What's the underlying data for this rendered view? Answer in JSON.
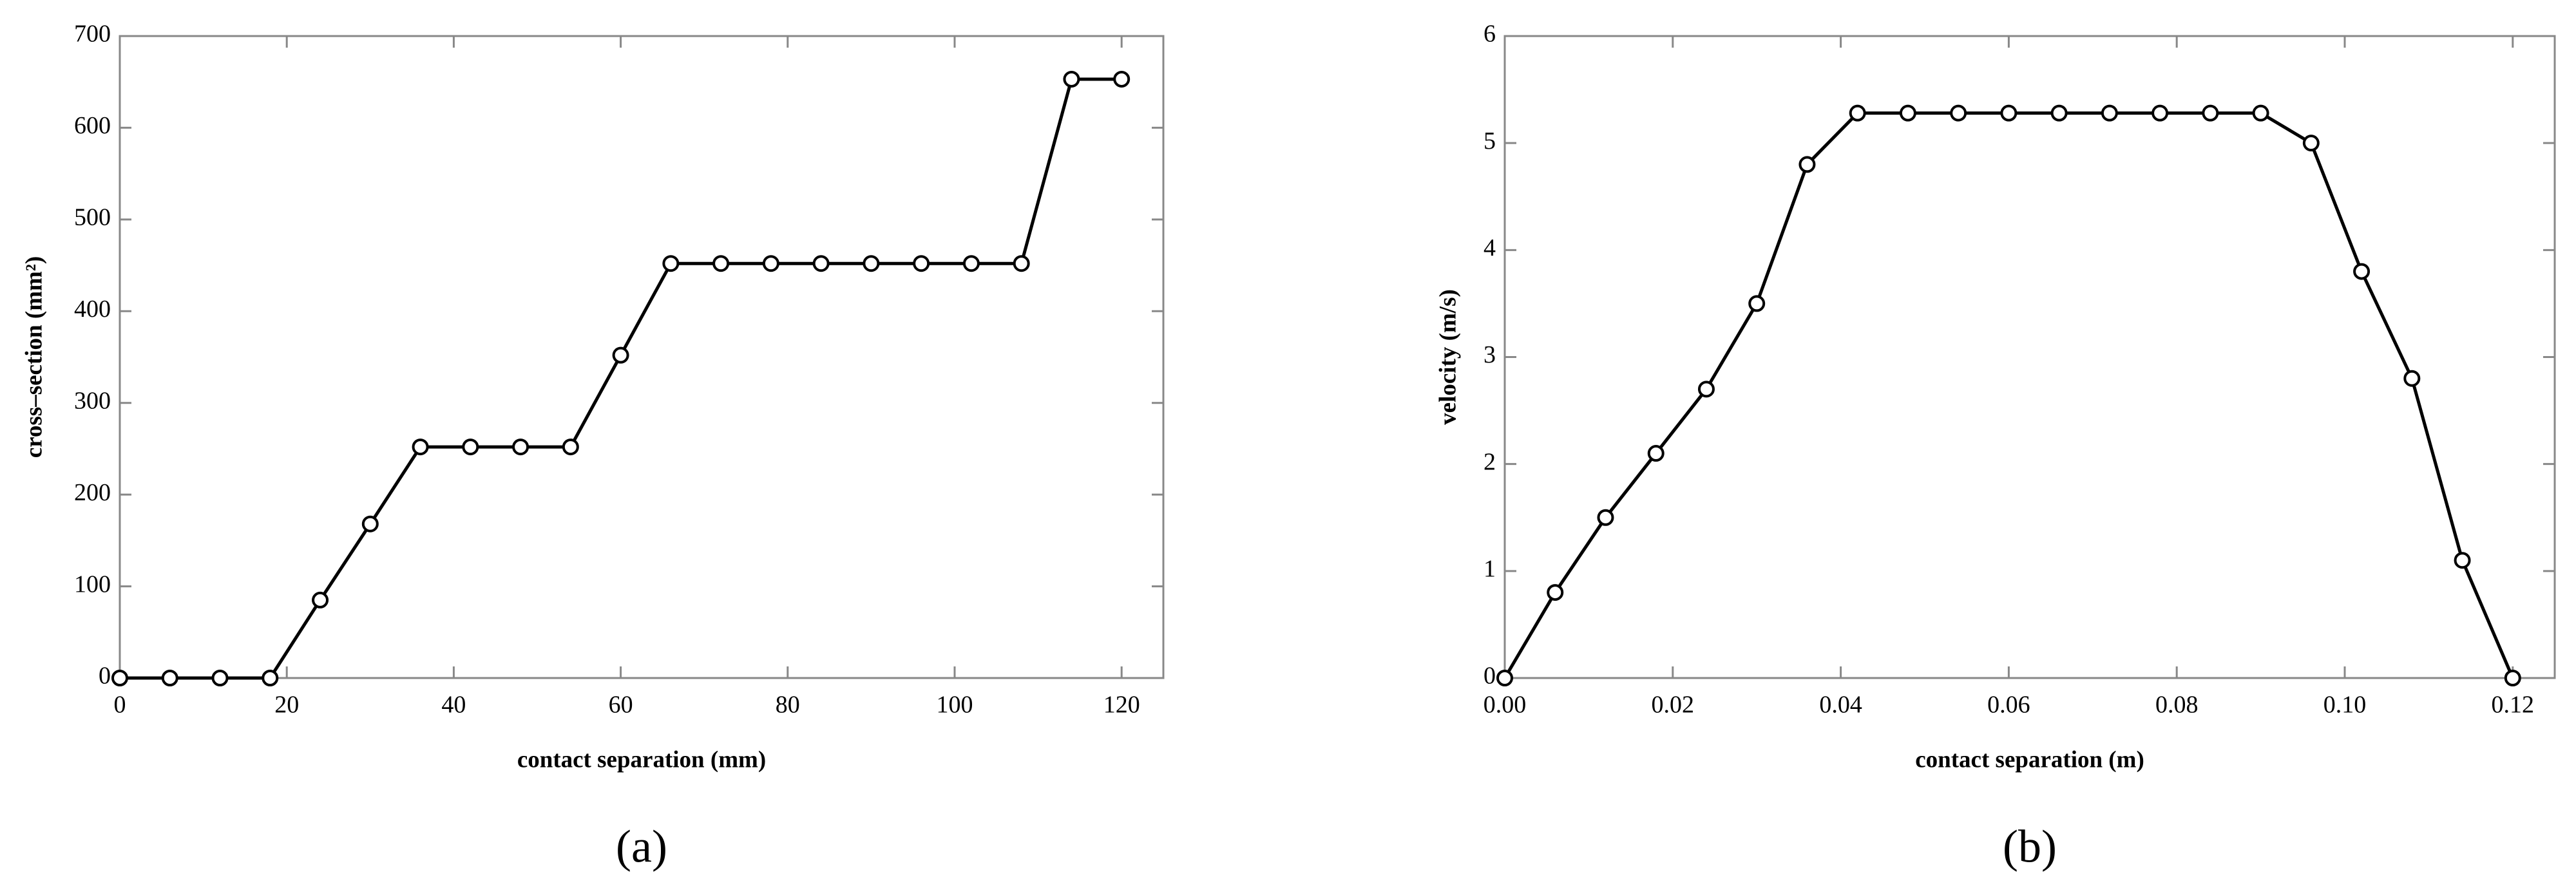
{
  "chart_data": [
    {
      "type": "line",
      "label": "(a)",
      "xlabel": "contact separation (mm)",
      "ylabel": "cross–section (mm²)",
      "x": [
        0,
        6,
        12,
        18,
        24,
        30,
        36,
        42,
        48,
        54,
        60,
        66,
        72,
        78,
        84,
        90,
        96,
        102,
        108,
        114,
        120
      ],
      "series": [
        {
          "color": "#000000",
          "values": [
            0,
            0,
            0,
            0,
            85,
            168,
            252,
            252,
            252,
            252,
            352,
            452,
            452,
            452,
            452,
            452,
            452,
            452,
            452,
            653,
            653
          ]
        }
      ],
      "xlim": [
        0,
        125
      ],
      "ylim": [
        0,
        700
      ],
      "xticks": [
        0,
        20,
        40,
        60,
        80,
        100,
        120
      ],
      "yticks": [
        0,
        100,
        200,
        300,
        400,
        500,
        600,
        700
      ]
    },
    {
      "type": "line",
      "label": "(b)",
      "xlabel": "contact separation (m)",
      "ylabel": "velocity (m/s)",
      "x": [
        0,
        0.006,
        0.012,
        0.018,
        0.024,
        0.03,
        0.036,
        0.042,
        0.048,
        0.054,
        0.06,
        0.066,
        0.072,
        0.078,
        0.084,
        0.09,
        0.096,
        0.102,
        0.108,
        0.114,
        0.12
      ],
      "series": [
        {
          "color": "#000000",
          "values": [
            0,
            0.8,
            1.5,
            2.1,
            2.7,
            3.5,
            4.8,
            5.28,
            5.28,
            5.28,
            5.28,
            5.28,
            5.28,
            5.28,
            5.28,
            5.28,
            5.0,
            3.8,
            2.8,
            1.1,
            0
          ]
        }
      ],
      "xlim": [
        0,
        0.125
      ],
      "ylim": [
        0,
        6
      ],
      "xticks": [
        {
          "value": 0,
          "label": "0.00"
        },
        {
          "value": 0.02,
          "label": "0.02"
        },
        {
          "value": 0.04,
          "label": "0.04"
        },
        {
          "value": 0.06,
          "label": "0.06"
        },
        {
          "value": 0.08,
          "label": "0.08"
        },
        {
          "value": 0.1,
          "label": "0.10"
        },
        {
          "value": 0.12,
          "label": "0.12"
        }
      ],
      "yticks": [
        0,
        1,
        2,
        3,
        4,
        5,
        6
      ]
    }
  ]
}
